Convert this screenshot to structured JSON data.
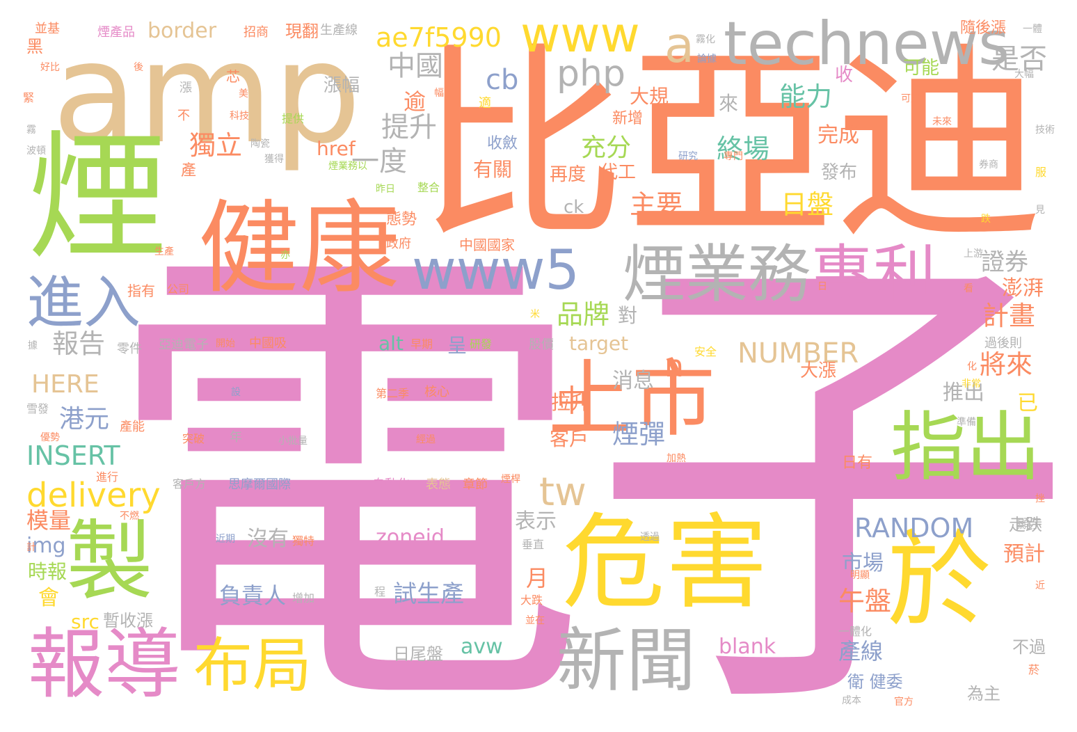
{
  "colors": {
    "pink": "#e58ac7",
    "orange": "#fb8b62",
    "green": "#a6d854",
    "yellow": "#ffd92f",
    "tan": "#e5c494",
    "blue": "#8da0cb",
    "gray": "#b3b3b3",
    "teal": "#66c2a5"
  },
  "words": [
    "電子",
    "比亞迪",
    "amp",
    "煙",
    "健康",
    "危害",
    "於",
    "technews",
    "www",
    "a",
    "煙業務",
    "專利",
    "www5",
    "進入",
    "製",
    "報導",
    "布局",
    "新聞",
    "上市",
    "指出",
    "php",
    "ae7f5990",
    "tw",
    "delivery",
    "INSERT",
    "HERE",
    "NUMBER",
    "RANDOM",
    "zoneid",
    "中國",
    "是否",
    "能力",
    "終場",
    "充分",
    "日盤",
    "主要",
    "獨立",
    "一度",
    "提升",
    "品牌",
    "證券",
    "計畫",
    "將來",
    "報告",
    "港元",
    "煙彈",
    "午盤",
    "試生產",
    "負責人",
    "沒有",
    "表示",
    "模量",
    "img",
    "時報",
    "會",
    "src",
    "暫收漲",
    "日尾盤",
    "avw",
    "blank",
    "產線",
    "市場",
    "預計",
    "月",
    "客戶",
    "拉升",
    "消息",
    "推出",
    "大漲",
    "已",
    "中",
    "n",
    "alt",
    "target",
    "href",
    "cb",
    "ck",
    "border",
    "現翻",
    "招商",
    "煙產品",
    "並基",
    "生產線",
    "隨後漲",
    "一體",
    "可能",
    "收",
    "漲幅",
    "大規",
    "完成",
    "代工",
    "再度",
    "有關",
    "收斂",
    "發布",
    "來",
    "逾",
    "態勢",
    "政府",
    "中國國家",
    "澎湃",
    "對",
    "指有",
    "公司",
    "亞迪電子",
    "開始",
    "中國吸",
    "早期",
    "呈",
    "研發",
    "股價",
    "安全",
    "過後則",
    "思摩爾國際",
    "自動化",
    "表態",
    "章節",
    "煙桿",
    "客戶方",
    "近期",
    "獨特",
    "增加",
    "程",
    "第二季",
    "核心",
    "小批量",
    "突破",
    "年",
    "經過",
    "零件",
    "雪發",
    "優勢",
    "進行",
    "不燃",
    "走跌",
    "顯示",
    "明顯",
    "大跌",
    "並在",
    "不過",
    "為主",
    "官方",
    "成本",
    "一體化",
    "衛 健委",
    "產",
    "煙業務以",
    "昨日",
    "整合",
    "研究",
    "專門",
    "獲得",
    "陶瓷",
    "科技",
    "提供",
    "美",
    "芯",
    "幅",
    "適",
    "論據",
    "霧化",
    "可望",
    "未來",
    "大幅",
    "技術",
    "服",
    "見",
    "跌",
    "券商",
    "上游",
    "日",
    "看",
    "米",
    "化",
    "非常",
    "準備",
    "透過",
    "垂直",
    "加熱",
    "設",
    "產能",
    "據",
    "計",
    "波頓",
    "霧",
    "好比",
    "後",
    "黑",
    "新增",
    "日有",
    "漲",
    "不",
    "菸",
    "近",
    "挫",
    "生產",
    "亦",
    "緊"
  ]
}
